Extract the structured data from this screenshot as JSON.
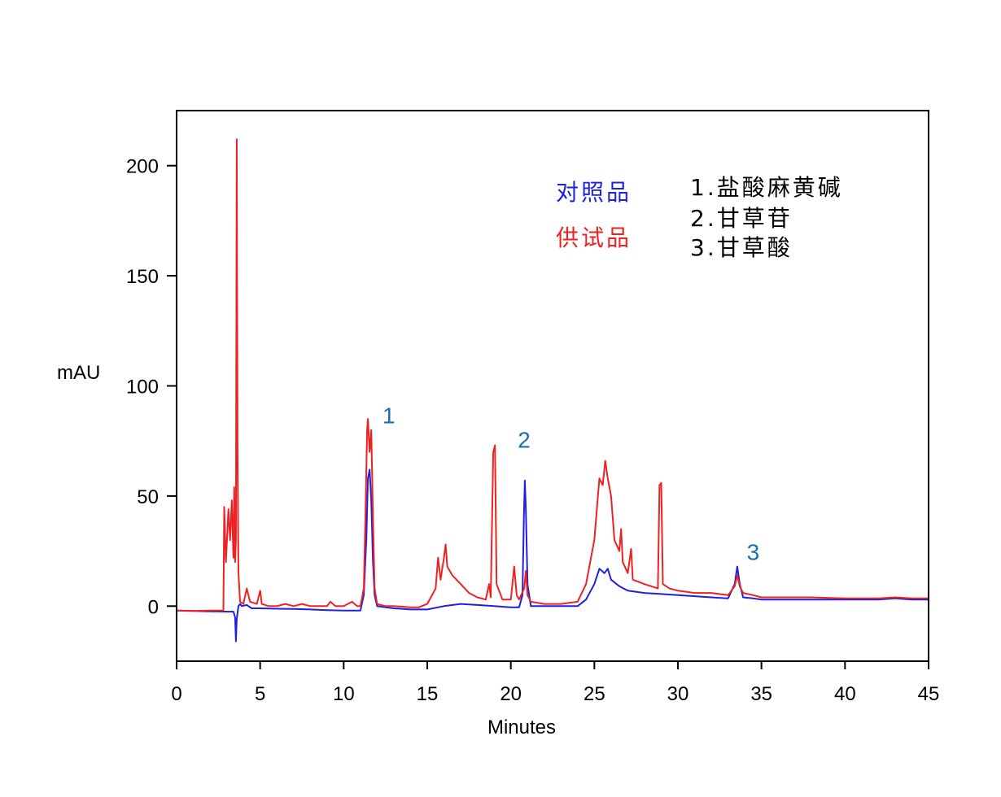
{
  "chart_data": {
    "type": "line",
    "xlabel": "Minutes",
    "ylabel": "mAU",
    "xlim": [
      0,
      45
    ],
    "ylim": [
      -25,
      225
    ],
    "x_ticks": [
      0,
      5,
      10,
      15,
      20,
      25,
      30,
      35,
      40,
      45
    ],
    "y_ticks": [
      0,
      50,
      100,
      150,
      200
    ],
    "grid": false,
    "legend_position": "top-right",
    "legend": [
      {
        "label": "对照品",
        "color": "#1f1fe0"
      },
      {
        "label": "供试品",
        "color": "#ee2222"
      }
    ],
    "peak_key": [
      "1.盐酸麻黄碱",
      "2.甘草苷",
      "3.甘草酸"
    ],
    "peak_labels": [
      {
        "label": "1",
        "x": 12.7,
        "y": 83
      },
      {
        "label": "2",
        "x": 20.8,
        "y": 72
      },
      {
        "label": "3",
        "x": 34.5,
        "y": 21
      }
    ],
    "series": [
      {
        "color": "#1f1fe0",
        "points": [
          [
            0,
            -2
          ],
          [
            1,
            -2.2
          ],
          [
            2,
            -2.4
          ],
          [
            3,
            -2.5
          ],
          [
            3.4,
            -2.5
          ],
          [
            3.5,
            -5
          ],
          [
            3.55,
            -16
          ],
          [
            3.6,
            -6
          ],
          [
            3.7,
            0
          ],
          [
            3.8,
            1
          ],
          [
            3.9,
            0
          ],
          [
            4.2,
            0.5
          ],
          [
            4.5,
            -1
          ],
          [
            5,
            -1
          ],
          [
            6,
            -1.2
          ],
          [
            7,
            -1.3
          ],
          [
            8,
            -1.5
          ],
          [
            9,
            -1.8
          ],
          [
            10,
            -2
          ],
          [
            11,
            -2
          ],
          [
            11.2,
            5
          ],
          [
            11.35,
            30
          ],
          [
            11.45,
            58
          ],
          [
            11.55,
            62
          ],
          [
            11.65,
            48
          ],
          [
            11.75,
            20
          ],
          [
            11.85,
            5
          ],
          [
            12.0,
            0
          ],
          [
            12.5,
            -0.5
          ],
          [
            13,
            -1
          ],
          [
            14,
            -1.5
          ],
          [
            15,
            -1.5
          ],
          [
            16,
            0
          ],
          [
            17,
            1
          ],
          [
            18,
            0.5
          ],
          [
            19,
            0
          ],
          [
            20,
            -0.5
          ],
          [
            20.5,
            -0.5
          ],
          [
            20.7,
            5
          ],
          [
            20.78,
            40
          ],
          [
            20.84,
            57
          ],
          [
            20.9,
            45
          ],
          [
            21.0,
            10
          ],
          [
            21.2,
            0
          ],
          [
            22,
            0
          ],
          [
            23,
            0
          ],
          [
            24,
            0
          ],
          [
            24.5,
            3
          ],
          [
            25,
            10
          ],
          [
            25.3,
            17
          ],
          [
            25.6,
            15
          ],
          [
            25.8,
            17
          ],
          [
            26,
            12
          ],
          [
            26.5,
            9
          ],
          [
            27,
            7
          ],
          [
            28,
            6
          ],
          [
            29,
            5.5
          ],
          [
            30,
            5
          ],
          [
            31,
            4.5
          ],
          [
            32,
            4
          ],
          [
            33,
            3.5
          ],
          [
            33.4,
            10
          ],
          [
            33.55,
            18
          ],
          [
            33.7,
            10
          ],
          [
            33.9,
            4
          ],
          [
            34.5,
            3.5
          ],
          [
            35,
            3
          ],
          [
            36,
            3
          ],
          [
            38,
            3
          ],
          [
            40,
            3
          ],
          [
            42,
            3
          ],
          [
            43,
            3.5
          ],
          [
            44,
            3
          ],
          [
            45,
            3
          ]
        ]
      },
      {
        "color": "#ee2222",
        "points": [
          [
            0,
            -2
          ],
          [
            1,
            -2.2
          ],
          [
            2,
            -2
          ],
          [
            2.8,
            -2
          ],
          [
            2.85,
            45
          ],
          [
            2.95,
            20
          ],
          [
            3.1,
            44
          ],
          [
            3.2,
            30
          ],
          [
            3.3,
            48
          ],
          [
            3.4,
            22
          ],
          [
            3.45,
            54
          ],
          [
            3.5,
            20
          ],
          [
            3.55,
            30
          ],
          [
            3.6,
            212
          ],
          [
            3.65,
            70
          ],
          [
            3.7,
            15
          ],
          [
            3.8,
            2
          ],
          [
            4.0,
            1
          ],
          [
            4.2,
            8
          ],
          [
            4.4,
            2
          ],
          [
            4.8,
            1
          ],
          [
            5.0,
            7
          ],
          [
            5.1,
            1
          ],
          [
            5.5,
            0
          ],
          [
            6,
            0
          ],
          [
            6.5,
            1
          ],
          [
            7,
            0
          ],
          [
            7.5,
            1
          ],
          [
            8,
            0
          ],
          [
            9,
            0
          ],
          [
            9.2,
            2
          ],
          [
            9.5,
            0
          ],
          [
            10,
            0
          ],
          [
            10.5,
            2
          ],
          [
            10.8,
            0
          ],
          [
            11,
            0
          ],
          [
            11.2,
            8
          ],
          [
            11.3,
            40
          ],
          [
            11.4,
            80
          ],
          [
            11.45,
            85
          ],
          [
            11.55,
            70
          ],
          [
            11.65,
            80
          ],
          [
            11.75,
            40
          ],
          [
            11.85,
            8
          ],
          [
            12.0,
            1
          ],
          [
            12.5,
            0
          ],
          [
            13,
            0
          ],
          [
            14,
            -0.5
          ],
          [
            14.5,
            -0.5
          ],
          [
            15,
            1
          ],
          [
            15.5,
            8
          ],
          [
            15.65,
            22
          ],
          [
            15.8,
            12
          ],
          [
            16.0,
            22
          ],
          [
            16.1,
            28
          ],
          [
            16.2,
            18
          ],
          [
            16.5,
            14
          ],
          [
            17,
            10
          ],
          [
            17.5,
            6
          ],
          [
            18,
            4
          ],
          [
            18.5,
            3
          ],
          [
            18.7,
            10
          ],
          [
            18.8,
            4
          ],
          [
            18.95,
            70
          ],
          [
            19.05,
            73
          ],
          [
            19.15,
            10
          ],
          [
            19.5,
            3
          ],
          [
            20,
            3
          ],
          [
            20.2,
            18
          ],
          [
            20.35,
            5
          ],
          [
            20.5,
            3
          ],
          [
            20.8,
            8
          ],
          [
            20.9,
            16
          ],
          [
            21.0,
            5
          ],
          [
            21.2,
            2
          ],
          [
            22,
            1
          ],
          [
            23,
            1
          ],
          [
            24,
            2
          ],
          [
            24.5,
            10
          ],
          [
            25,
            30
          ],
          [
            25.3,
            58
          ],
          [
            25.5,
            55
          ],
          [
            25.65,
            66
          ],
          [
            25.8,
            58
          ],
          [
            26.0,
            50
          ],
          [
            26.2,
            30
          ],
          [
            26.5,
            25
          ],
          [
            26.6,
            35
          ],
          [
            26.7,
            20
          ],
          [
            27,
            15
          ],
          [
            27.2,
            26
          ],
          [
            27.3,
            12
          ],
          [
            28,
            10
          ],
          [
            28.8,
            8
          ],
          [
            28.9,
            55
          ],
          [
            29.0,
            56
          ],
          [
            29.1,
            10
          ],
          [
            29.5,
            8
          ],
          [
            30,
            7
          ],
          [
            31,
            6
          ],
          [
            32,
            6
          ],
          [
            33,
            5
          ],
          [
            33.4,
            9
          ],
          [
            33.55,
            14
          ],
          [
            33.7,
            9
          ],
          [
            33.9,
            6
          ],
          [
            34.5,
            5
          ],
          [
            35,
            4
          ],
          [
            36,
            4
          ],
          [
            38,
            4
          ],
          [
            40,
            3.5
          ],
          [
            42,
            3.5
          ],
          [
            43,
            4
          ],
          [
            44,
            3.5
          ],
          [
            45,
            3.5
          ]
        ]
      }
    ]
  }
}
